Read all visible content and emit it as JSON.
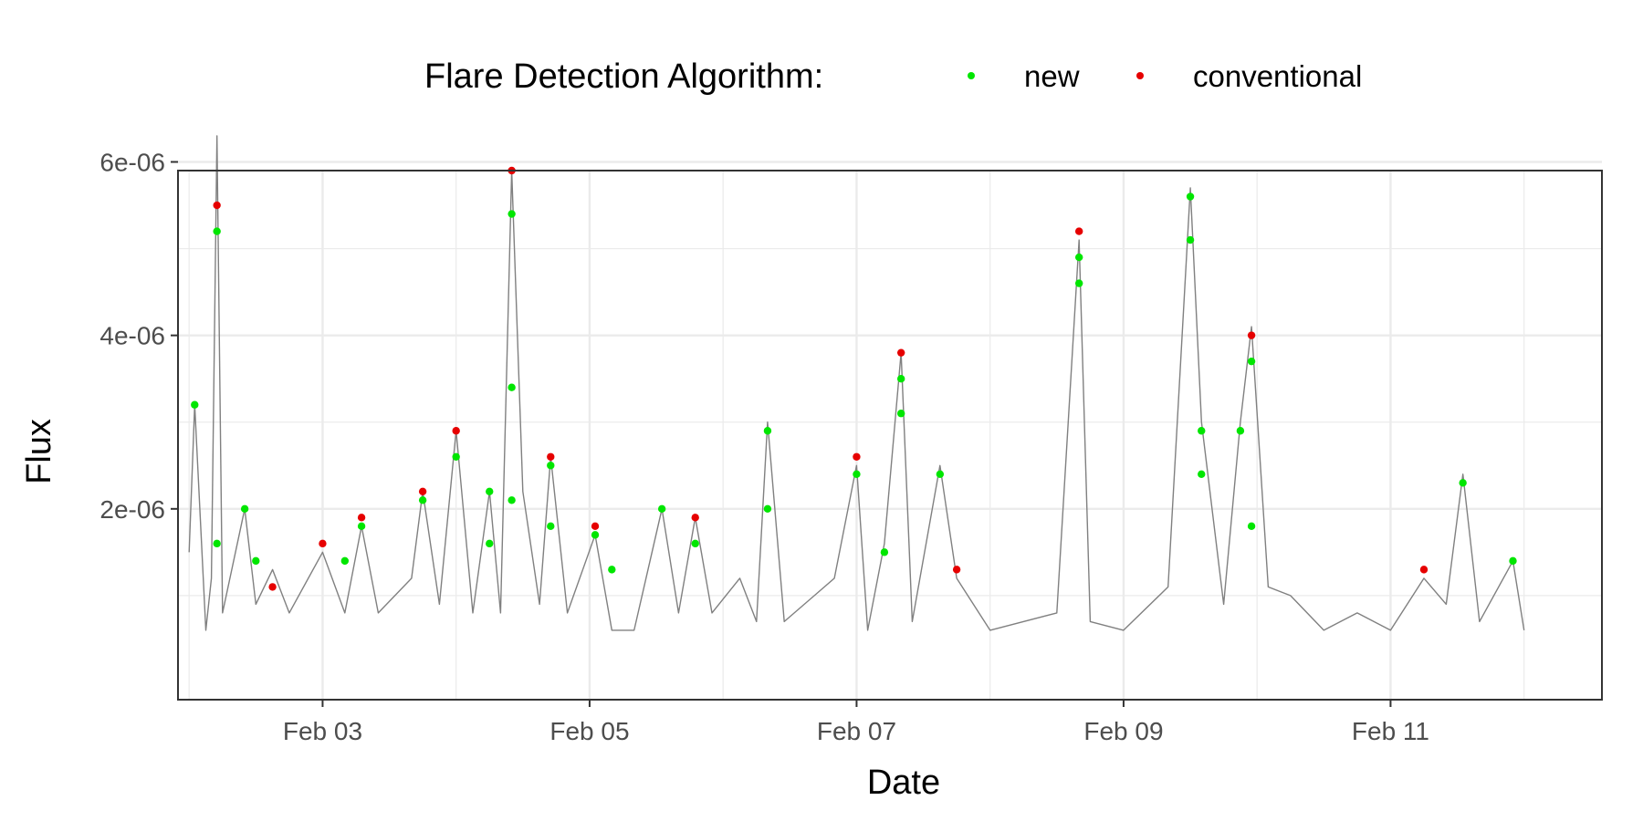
{
  "chart_data": {
    "type": "scatter",
    "xlabel": "Date",
    "ylabel": "Flux",
    "xlim": [
      "2023-02-01 22:00",
      "2023-02-12 14:00"
    ],
    "ylim": [
      -2e-07,
      5.9e-06
    ],
    "x_ticks": [
      "Feb 03",
      "Feb 05",
      "Feb 07",
      "Feb 09",
      "Feb 11"
    ],
    "x_tick_dates": [
      "2023-02-03",
      "2023-02-05",
      "2023-02-07",
      "2023-02-09",
      "2023-02-11"
    ],
    "y_ticks": [
      2e-06,
      4e-06,
      6e-06
    ],
    "y_tick_labels": [
      "2e-06",
      "4e-06",
      "6e-06"
    ],
    "grid": true,
    "legend": {
      "title": "Flare Detection Algorithm:",
      "position": "top",
      "entries": [
        {
          "label": "new",
          "color": "#00e600"
        },
        {
          "label": "conventional",
          "color": "#e60000"
        }
      ]
    },
    "colors": {
      "background_line": "#808080",
      "new": "#00e600",
      "conventional": "#e60000",
      "grid": "#ebebeb"
    },
    "flux_series": [
      [
        "2023-02-02 00:00",
        1.5e-06
      ],
      [
        "2023-02-02 01:00",
        3.2e-06
      ],
      [
        "2023-02-02 03:00",
        6e-07
      ],
      [
        "2023-02-02 04:00",
        1.2e-06
      ],
      [
        "2023-02-02 05:00",
        6.3e-06
      ],
      [
        "2023-02-02 06:00",
        8e-07
      ],
      [
        "2023-02-02 10:00",
        2e-06
      ],
      [
        "2023-02-02 12:00",
        9e-07
      ],
      [
        "2023-02-02 15:00",
        1.3e-06
      ],
      [
        "2023-02-02 18:00",
        8e-07
      ],
      [
        "2023-02-03 00:00",
        1.5e-06
      ],
      [
        "2023-02-03 04:00",
        8e-07
      ],
      [
        "2023-02-03 07:00",
        1.8e-06
      ],
      [
        "2023-02-03 10:00",
        8e-07
      ],
      [
        "2023-02-03 16:00",
        1.2e-06
      ],
      [
        "2023-02-03 18:00",
        2.2e-06
      ],
      [
        "2023-02-03 21:00",
        9e-07
      ],
      [
        "2023-02-04 00:00",
        2.9e-06
      ],
      [
        "2023-02-04 03:00",
        8e-07
      ],
      [
        "2023-02-04 06:00",
        2.2e-06
      ],
      [
        "2023-02-04 08:00",
        8e-07
      ],
      [
        "2023-02-04 10:00",
        5.9e-06
      ],
      [
        "2023-02-04 12:00",
        2.2e-06
      ],
      [
        "2023-02-04 15:00",
        9e-07
      ],
      [
        "2023-02-04 17:00",
        2.6e-06
      ],
      [
        "2023-02-04 20:00",
        8e-07
      ],
      [
        "2023-02-05 01:00",
        1.7e-06
      ],
      [
        "2023-02-05 04:00",
        6e-07
      ],
      [
        "2023-02-05 08:00",
        6e-07
      ],
      [
        "2023-02-05 13:00",
        2e-06
      ],
      [
        "2023-02-05 16:00",
        8e-07
      ],
      [
        "2023-02-05 19:00",
        1.9e-06
      ],
      [
        "2023-02-05 22:00",
        8e-07
      ],
      [
        "2023-02-06 03:00",
        1.2e-06
      ],
      [
        "2023-02-06 06:00",
        7e-07
      ],
      [
        "2023-02-06 08:00",
        3e-06
      ],
      [
        "2023-02-06 11:00",
        7e-07
      ],
      [
        "2023-02-06 20:00",
        1.2e-06
      ],
      [
        "2023-02-07 00:00",
        2.5e-06
      ],
      [
        "2023-02-07 02:00",
        6e-07
      ],
      [
        "2023-02-07 05:00",
        1.6e-06
      ],
      [
        "2023-02-07 08:00",
        3.8e-06
      ],
      [
        "2023-02-07 10:00",
        7e-07
      ],
      [
        "2023-02-07 15:00",
        2.5e-06
      ],
      [
        "2023-02-07 18:00",
        1.2e-06
      ],
      [
        "2023-02-08 00:00",
        6e-07
      ],
      [
        "2023-02-08 12:00",
        8e-07
      ],
      [
        "2023-02-08 16:00",
        5.1e-06
      ],
      [
        "2023-02-08 18:00",
        7e-07
      ],
      [
        "2023-02-09 00:00",
        6e-07
      ],
      [
        "2023-02-09 08:00",
        1.1e-06
      ],
      [
        "2023-02-09 12:00",
        5.7e-06
      ],
      [
        "2023-02-09 14:00",
        3e-06
      ],
      [
        "2023-02-09 18:00",
        9e-07
      ],
      [
        "2023-02-09 21:00",
        3e-06
      ],
      [
        "2023-02-09 23:00",
        4.1e-06
      ],
      [
        "2023-02-10 02:00",
        1.1e-06
      ],
      [
        "2023-02-10 06:00",
        1e-06
      ],
      [
        "2023-02-10 12:00",
        6e-07
      ],
      [
        "2023-02-10 18:00",
        8e-07
      ],
      [
        "2023-02-11 00:00",
        6e-07
      ],
      [
        "2023-02-11 06:00",
        1.2e-06
      ],
      [
        "2023-02-11 10:00",
        9e-07
      ],
      [
        "2023-02-11 13:00",
        2.4e-06
      ],
      [
        "2023-02-11 16:00",
        7e-07
      ],
      [
        "2023-02-11 22:00",
        1.4e-06
      ],
      [
        "2023-02-12 00:00",
        6e-07
      ]
    ],
    "series": [
      {
        "name": "new",
        "points": [
          [
            "2023-02-02 01:00",
            3.2e-06
          ],
          [
            "2023-02-02 05:00",
            5.2e-06
          ],
          [
            "2023-02-02 05:00",
            1.6e-06
          ],
          [
            "2023-02-02 10:00",
            2e-06
          ],
          [
            "2023-02-02 12:00",
            1.4e-06
          ],
          [
            "2023-02-03 04:00",
            1.4e-06
          ],
          [
            "2023-02-03 07:00",
            1.8e-06
          ],
          [
            "2023-02-03 18:00",
            2.1e-06
          ],
          [
            "2023-02-04 00:00",
            2.6e-06
          ],
          [
            "2023-02-04 06:00",
            2.2e-06
          ],
          [
            "2023-02-04 06:00",
            1.6e-06
          ],
          [
            "2023-02-04 10:00",
            5.4e-06
          ],
          [
            "2023-02-04 10:00",
            3.4e-06
          ],
          [
            "2023-02-04 10:00",
            2.1e-06
          ],
          [
            "2023-02-04 17:00",
            2.5e-06
          ],
          [
            "2023-02-04 17:00",
            1.8e-06
          ],
          [
            "2023-02-05 01:00",
            1.7e-06
          ],
          [
            "2023-02-05 04:00",
            1.3e-06
          ],
          [
            "2023-02-05 13:00",
            2e-06
          ],
          [
            "2023-02-05 19:00",
            1.6e-06
          ],
          [
            "2023-02-06 08:00",
            2.9e-06
          ],
          [
            "2023-02-06 08:00",
            2e-06
          ],
          [
            "2023-02-07 00:00",
            2.4e-06
          ],
          [
            "2023-02-07 05:00",
            1.5e-06
          ],
          [
            "2023-02-07 08:00",
            3.5e-06
          ],
          [
            "2023-02-07 08:00",
            3.1e-06
          ],
          [
            "2023-02-07 15:00",
            2.4e-06
          ],
          [
            "2023-02-08 16:00",
            4.9e-06
          ],
          [
            "2023-02-08 16:00",
            4.6e-06
          ],
          [
            "2023-02-09 12:00",
            5.6e-06
          ],
          [
            "2023-02-09 12:00",
            5.1e-06
          ],
          [
            "2023-02-09 14:00",
            2.9e-06
          ],
          [
            "2023-02-09 14:00",
            2.4e-06
          ],
          [
            "2023-02-09 21:00",
            2.9e-06
          ],
          [
            "2023-02-09 23:00",
            3.7e-06
          ],
          [
            "2023-02-09 23:00",
            1.8e-06
          ],
          [
            "2023-02-11 13:00",
            2.3e-06
          ],
          [
            "2023-02-11 22:00",
            1.4e-06
          ]
        ]
      },
      {
        "name": "conventional",
        "points": [
          [
            "2023-02-02 05:00",
            5.5e-06
          ],
          [
            "2023-02-02 15:00",
            1.1e-06
          ],
          [
            "2023-02-03 00:00",
            1.6e-06
          ],
          [
            "2023-02-03 07:00",
            1.9e-06
          ],
          [
            "2023-02-03 18:00",
            2.2e-06
          ],
          [
            "2023-02-04 00:00",
            2.9e-06
          ],
          [
            "2023-02-04 10:00",
            5.9e-06
          ],
          [
            "2023-02-04 17:00",
            2.6e-06
          ],
          [
            "2023-02-05 01:00",
            1.8e-06
          ],
          [
            "2023-02-05 19:00",
            1.9e-06
          ],
          [
            "2023-02-07 00:00",
            2.6e-06
          ],
          [
            "2023-02-07 08:00",
            3.8e-06
          ],
          [
            "2023-02-07 18:00",
            1.3e-06
          ],
          [
            "2023-02-08 16:00",
            5.2e-06
          ],
          [
            "2023-02-09 23:00",
            4e-06
          ],
          [
            "2023-02-11 06:00",
            1.3e-06
          ]
        ]
      }
    ]
  }
}
